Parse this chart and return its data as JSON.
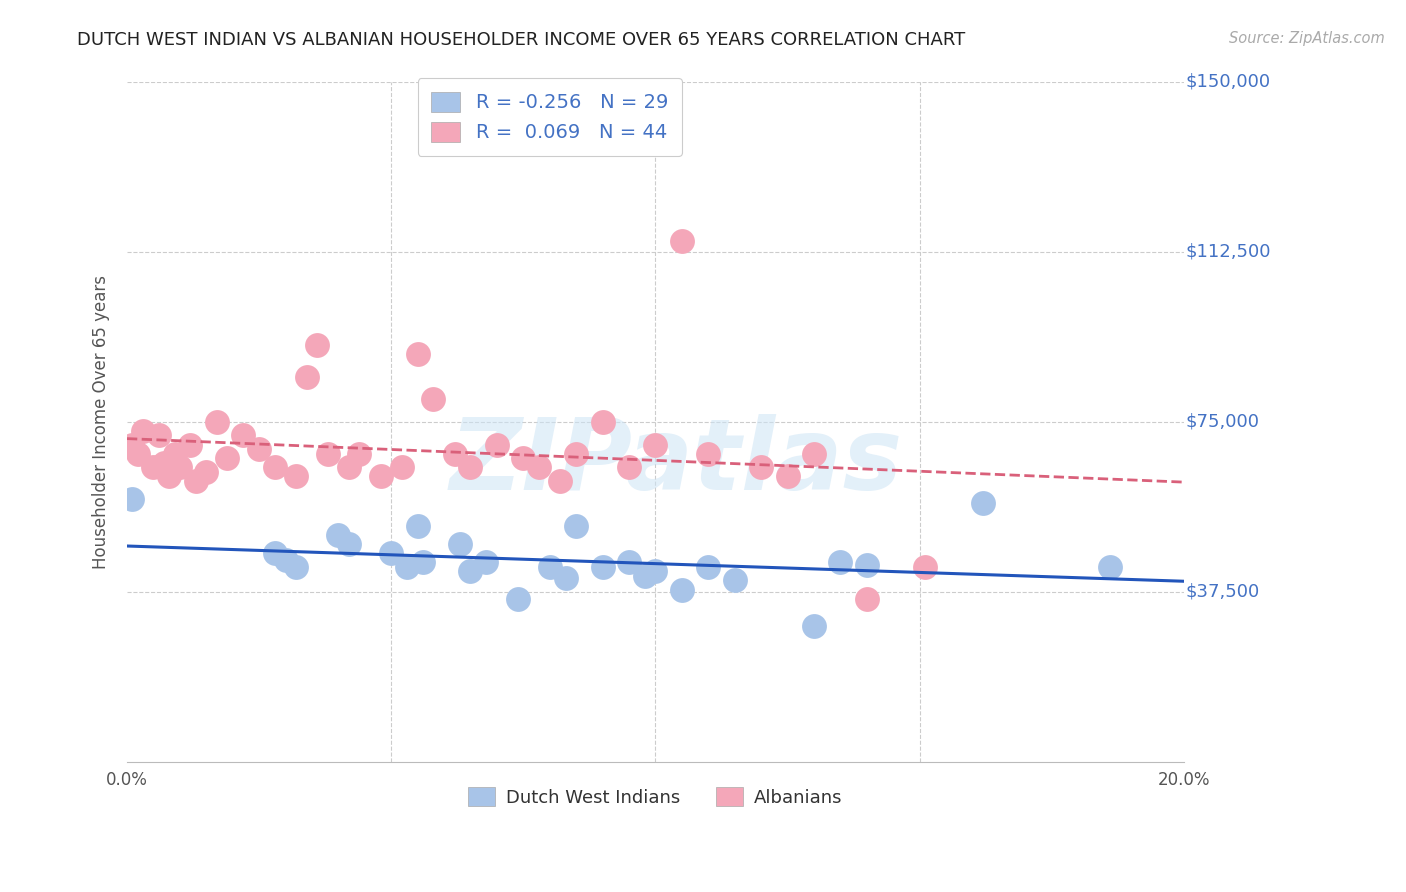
{
  "title": "DUTCH WEST INDIAN VS ALBANIAN HOUSEHOLDER INCOME OVER 65 YEARS CORRELATION CHART",
  "source": "Source: ZipAtlas.com",
  "ylabel": "Householder Income Over 65 years",
  "xlim": [
    0.0,
    0.2
  ],
  "ylim": [
    0,
    150000
  ],
  "yticks": [
    37500,
    75000,
    112500,
    150000
  ],
  "ytick_labels": [
    "$37,500",
    "$75,000",
    "$112,500",
    "$150,000"
  ],
  "xticks": [
    0.0,
    0.05,
    0.1,
    0.15,
    0.2
  ],
  "xtick_labels": [
    "0.0%",
    "",
    "",
    "",
    "20.0%"
  ],
  "dwi_color": "#a8c4e8",
  "alb_color": "#f4a7b9",
  "dwi_line_color": "#2255bb",
  "alb_line_color": "#d9607a",
  "grid_color": "#cccccc",
  "title_color": "#222222",
  "axis_label_color": "#555555",
  "ytick_color": "#4472c4",
  "legend_text_color": "#4472c4",
  "R_dwi": -0.256,
  "N_dwi": 29,
  "R_alb": 0.069,
  "N_alb": 44,
  "dwi_x": [
    0.001,
    0.028,
    0.03,
    0.032,
    0.04,
    0.042,
    0.05,
    0.053,
    0.055,
    0.056,
    0.063,
    0.065,
    0.068,
    0.074,
    0.08,
    0.083,
    0.085,
    0.09,
    0.095,
    0.098,
    0.1,
    0.105,
    0.11,
    0.115,
    0.13,
    0.135,
    0.14,
    0.162,
    0.186
  ],
  "dwi_y": [
    58000,
    46000,
    44500,
    43000,
    50000,
    48000,
    46000,
    43000,
    52000,
    44000,
    48000,
    42000,
    44000,
    36000,
    43000,
    40500,
    52000,
    43000,
    44000,
    41000,
    42000,
    38000,
    43000,
    40000,
    30000,
    44000,
    43500,
    57000,
    43000
  ],
  "alb_x": [
    0.001,
    0.002,
    0.003,
    0.005,
    0.006,
    0.007,
    0.008,
    0.009,
    0.01,
    0.012,
    0.013,
    0.015,
    0.017,
    0.019,
    0.022,
    0.025,
    0.028,
    0.032,
    0.034,
    0.036,
    0.038,
    0.042,
    0.044,
    0.048,
    0.052,
    0.055,
    0.058,
    0.062,
    0.065,
    0.07,
    0.075,
    0.078,
    0.082,
    0.085,
    0.09,
    0.095,
    0.1,
    0.105,
    0.11,
    0.12,
    0.125,
    0.13,
    0.14,
    0.151
  ],
  "alb_y": [
    70000,
    68000,
    73000,
    65000,
    72000,
    66000,
    63000,
    68000,
    65000,
    70000,
    62000,
    64000,
    75000,
    67000,
    72000,
    69000,
    65000,
    63000,
    85000,
    92000,
    68000,
    65000,
    68000,
    63000,
    65000,
    90000,
    80000,
    68000,
    65000,
    70000,
    67000,
    65000,
    62000,
    68000,
    75000,
    65000,
    70000,
    115000,
    68000,
    65000,
    63000,
    68000,
    36000,
    43000
  ],
  "watermark": "ZIPatlas",
  "background_color": "#ffffff"
}
